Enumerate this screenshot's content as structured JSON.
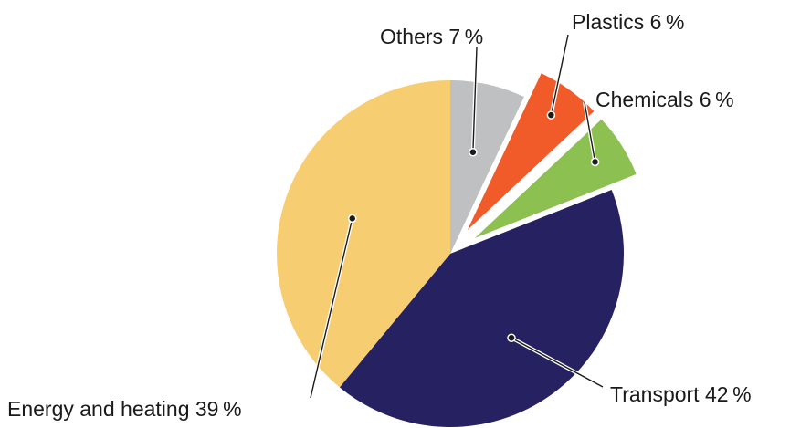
{
  "chart_data": {
    "type": "pie",
    "title": "",
    "slices": [
      {
        "label": "Others",
        "display": "Others 7 %",
        "value": 7,
        "color": "#bfc0c2",
        "exploded": false
      },
      {
        "label": "Plastics",
        "display": "Plastics 6 %",
        "value": 6,
        "color": "#f15a29",
        "exploded": true
      },
      {
        "label": "Chemicals",
        "display": "Chemicals 6 %",
        "value": 6,
        "color": "#8cc152",
        "exploded": true
      },
      {
        "label": "Transport",
        "display": "Transport 42 %",
        "value": 42,
        "color": "#262262",
        "exploded": false
      },
      {
        "label": "Energy and heating",
        "display": "Energy and heating 39 %",
        "value": 39,
        "color": "#f7cd72",
        "exploded": false
      }
    ]
  }
}
